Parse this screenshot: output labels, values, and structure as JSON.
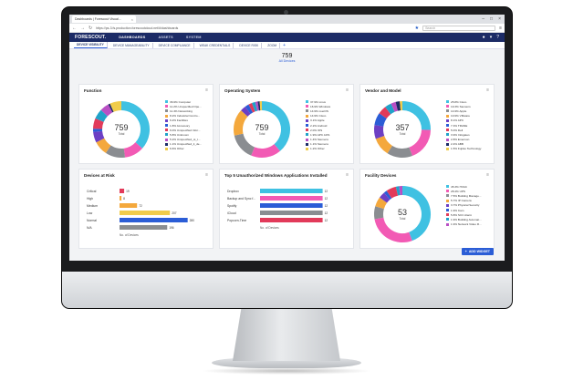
{
  "browser": {
    "tab_title": "Dashboards | Forescout Visual...",
    "url": "https://ps-3.fs.production.forescoutcloud.net/#/dashboards",
    "search_placeholder": "Search"
  },
  "app": {
    "logo": "FORESCOUT.",
    "nav": [
      "DASHBOARDS",
      "ASSETS",
      "SYSTEM"
    ],
    "subtabs": [
      "DEVICE VISIBILITY",
      "DEVICE MANAGEABILITY",
      "DEVICE COMPLIANCE",
      "WEAK CREDENTIALS",
      "DEVICE RISK",
      "ZOOM"
    ],
    "total_value": "759",
    "total_label": "All Devices",
    "add_widget": "ADD WIDGET"
  },
  "colors": [
    "#3fc1e2",
    "#f25ab4",
    "#8a8d91",
    "#f4a83c",
    "#6c3fc4",
    "#2b5dd6",
    "#e23a5a",
    "#20a2c9",
    "#b84fc4",
    "#1c2b66",
    "#f0cc4b"
  ],
  "chart_data": [
    {
      "type": "pie",
      "title": "Function",
      "center_value": "759",
      "center_label": "Total",
      "legend": [
        "36.9% Computer",
        "11.2% Unspecified Ope...",
        "11.4% Networking",
        "8.2% Industrial Contro...",
        "6.2% Facilities",
        "1.8% Accessory",
        "6.0% Unspecified Infor...",
        "5.8% Unknown",
        "5.2% Unspecified_ot_t...",
        "1.1% Unspecified_it_de...",
        "6.6% Other"
      ],
      "values": [
        36.9,
        11.2,
        11.4,
        8.2,
        6.2,
        1.8,
        6.0,
        5.8,
        5.2,
        1.1,
        6.6
      ]
    },
    {
      "type": "pie",
      "title": "Operating System",
      "center_value": "759",
      "center_label": "Total",
      "legend": [
        "37.9% Linux",
        "16.9% Windows",
        "14.9% macOS",
        "14.9% Cisco",
        "3.1% Apple",
        "2.2% Android",
        "2.0% IOS",
        "1.9% APC AOS",
        "1.4% Siemens",
        "1.1% Siemens",
        "1.2% Other"
      ],
      "values": [
        37.9,
        16.9,
        14.9,
        14.9,
        3.1,
        2.2,
        2.0,
        1.9,
        1.4,
        1.1,
        1.2
      ]
    },
    {
      "type": "pie",
      "title": "Vendor and Model",
      "center_value": "357",
      "center_label": "Total",
      "legend": [
        "25.8% Cisco",
        "19.3% Siemens",
        "14.9% Apple",
        "10.9% VMware",
        "8.1% APC",
        "7.3% TRANE",
        "5.0% Dell",
        "3.9% Infogates",
        "2.8% Emerson",
        "2.4% ABB",
        "1.5% Fujitsu Technology"
      ],
      "values": [
        25.8,
        19.3,
        14.9,
        10.9,
        8.1,
        7.3,
        5.0,
        3.9,
        2.8,
        2.4,
        1.5
      ]
    },
    {
      "type": "bar",
      "title": "Devices at Risk",
      "categories": [
        "Critical",
        "High",
        "Medium",
        "Low",
        "Normal",
        "N/A"
      ],
      "values": [
        19,
        8,
        72,
        207,
        280,
        196
      ],
      "colors": [
        "#e23a5a",
        "#f4a83c",
        "#f4a83c",
        "#f0cc4b",
        "#2b5dd6",
        "#8a8d91"
      ],
      "xlabel": "No. of Devices"
    },
    {
      "type": "bar",
      "title": "Top 5 Unauthorized Windows Applications Installed",
      "categories": [
        "Dropbox",
        "Backup and Sync f...",
        "Spotify",
        "iCloud",
        "Popcorn-Time"
      ],
      "values": [
        12,
        12,
        12,
        12,
        12
      ],
      "colors": [
        "#3fc1e2",
        "#f25ab4",
        "#2b5dd6",
        "#8a8d91",
        "#e23a5a"
      ],
      "xlabel": "No. of Devices"
    },
    {
      "type": "pie",
      "title": "Facility Devices",
      "center_value": "53",
      "center_label": "Total",
      "legend": [
        "45.3% HVAC",
        "28.4% UPS",
        "7.5% Building Manage...",
        "5.7% IP Camera",
        "3.7% Physical Security",
        "1.9% Cam",
        "5.8% SCC Alarm",
        "1.9% Building Automat...",
        "1.9% Network Video R..."
      ],
      "values": [
        45.3,
        28.4,
        7.5,
        5.7,
        3.7,
        1.9,
        5.8,
        1.9,
        1.9
      ]
    }
  ]
}
